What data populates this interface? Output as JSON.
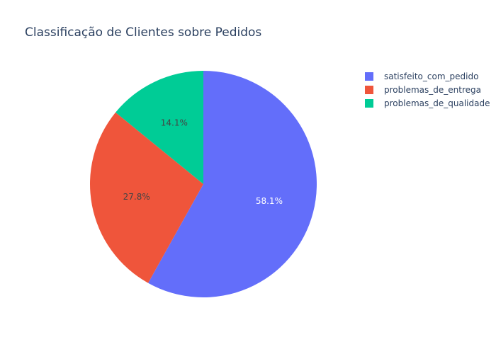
{
  "chart_data": {
    "type": "pie",
    "title": "Classificação de Clientes sobre Pedidos",
    "labels": [
      "satisfeito_com_pedido",
      "problemas_de_entrega",
      "problemas_de_qualidade"
    ],
    "values": [
      58.1,
      27.8,
      14.1
    ],
    "value_labels": [
      "58.1%",
      "27.8%",
      "14.1%"
    ],
    "colors": [
      "#636efa",
      "#ef553b",
      "#00cc96"
    ],
    "label_colors": [
      "#ffffff",
      "#444444",
      "#444444"
    ],
    "start_angle_deg": 0,
    "direction": "clockwise",
    "legend_position": "top-right"
  }
}
